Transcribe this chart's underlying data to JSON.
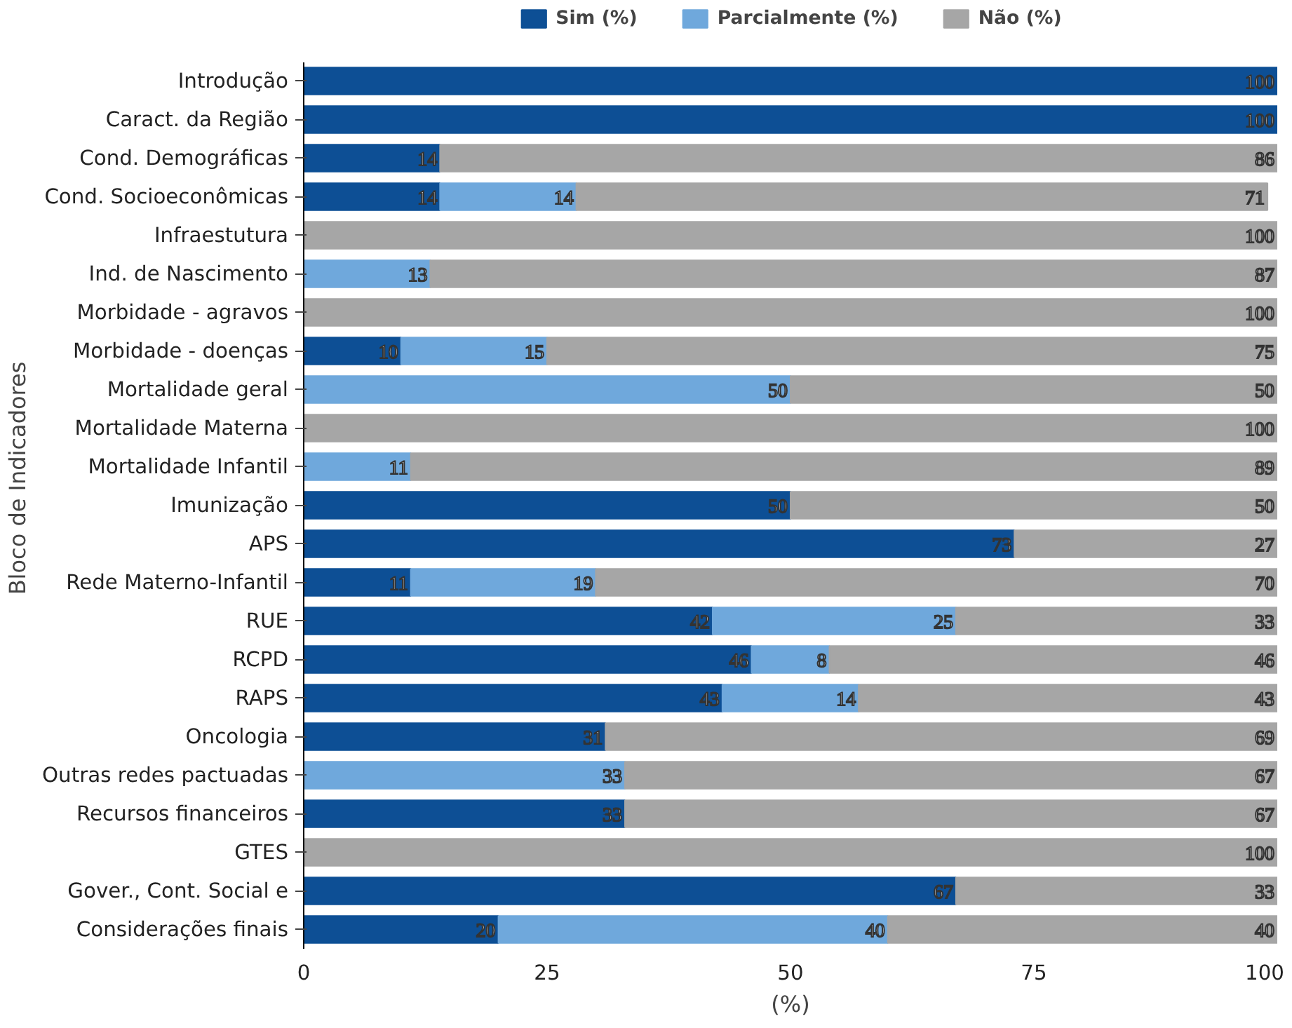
{
  "chart_data": {
    "type": "bar",
    "orientation": "horizontal",
    "stacked": true,
    "xlabel": "(%)",
    "ylabel": "Bloco de Indicadores",
    "legend": "top",
    "grid": false,
    "xlim": [
      0,
      100
    ],
    "xticks": [
      0,
      25,
      50,
      75,
      100
    ],
    "categories": [
      "Introdução",
      "Caract. da Região",
      "Cond. Demográficas",
      "Cond. Socioeconômicas",
      "Infraestutura",
      "Ind. de Nascimento",
      "Morbidade - agravos",
      "Morbidade - doenças",
      "Mortalidade geral",
      "Mortalidade Materna",
      "Mortalidade Infantil",
      "Imunização",
      "APS",
      "Rede Materno-Infantil",
      "RUE",
      "RCPD",
      "RAPS",
      "Oncologia",
      "Outras redes pactuadas",
      "Recursos financeiros",
      "GTES",
      "Gover., Cont. Social e",
      "Considerações finais"
    ],
    "series": [
      {
        "name": "Sim (%)",
        "color": "#0d4f95",
        "values": [
          100,
          100,
          14,
          14,
          0,
          0,
          0,
          10,
          0,
          0,
          0,
          50,
          73,
          11,
          42,
          46,
          43,
          31,
          0,
          33,
          0,
          67,
          20
        ],
        "value_labels": [
          "100",
          "100",
          "14",
          "14",
          null,
          null,
          null,
          "10",
          null,
          null,
          null,
          "50",
          "73",
          "11",
          "42",
          "46",
          "43",
          "31",
          null,
          "33",
          null,
          "67",
          "20"
        ]
      },
      {
        "name": "Parcialmente (%)",
        "color": "#6fa8dc",
        "values": [
          0,
          0,
          0,
          14,
          0,
          13,
          0,
          15,
          50,
          0,
          11,
          0,
          0,
          19,
          25,
          8,
          14,
          0,
          33,
          0,
          0,
          0,
          40
        ],
        "value_labels": [
          null,
          null,
          null,
          "14",
          null,
          "13",
          null,
          "15",
          "50",
          null,
          "11",
          null,
          null,
          "19",
          "25",
          "8",
          "14",
          null,
          "33",
          null,
          null,
          null,
          "40"
        ]
      },
      {
        "name": "Não (%)",
        "color": "#a6a6a6",
        "values": [
          0,
          0,
          86,
          71,
          100,
          87,
          100,
          75,
          50,
          100,
          89,
          50,
          27,
          70,
          33,
          46,
          43,
          69,
          67,
          67,
          100,
          33,
          40
        ],
        "value_labels": [
          null,
          null,
          "86",
          "71",
          "100",
          "87",
          "100",
          "75",
          "50",
          "100",
          "89",
          "50",
          "27",
          "70",
          "33",
          "46",
          "43",
          "69",
          "67",
          "67",
          "100",
          "33",
          "40"
        ]
      }
    ]
  }
}
